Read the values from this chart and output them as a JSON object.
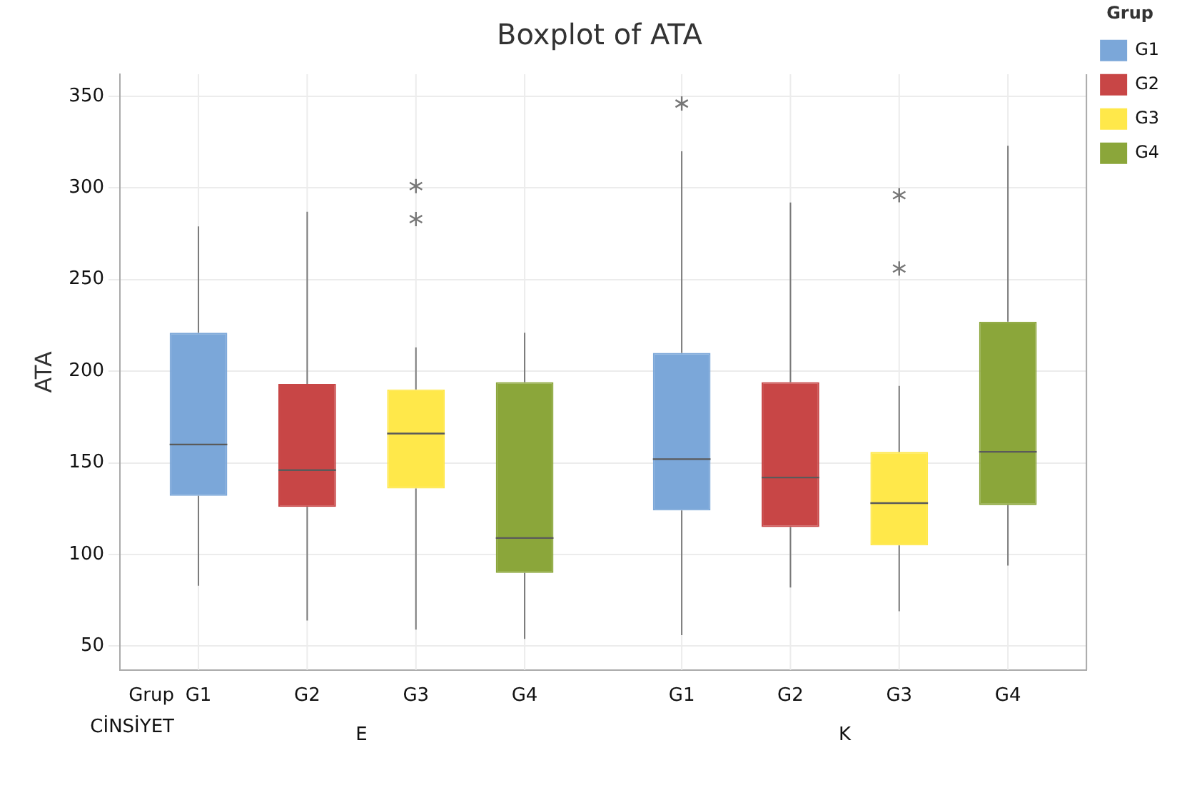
{
  "chart_data": {
    "type": "box",
    "title": "Boxplot of ATA",
    "ylabel": "ATA",
    "xlabel": "CİNSİYET",
    "legend_title": "Grup",
    "annotations": [
      "Grup"
    ],
    "categories": [
      "E",
      "K"
    ],
    "series": [
      {
        "name": "G1",
        "color": "#7ba7d9",
        "boxes": [
          {
            "low": 83,
            "q1": 132,
            "median": 160,
            "q3": 221,
            "high": 279
          },
          {
            "low": 56,
            "q1": 124,
            "median": 152,
            "q3": 210,
            "high": 320,
            "outliers": [
              346
            ]
          }
        ]
      },
      {
        "name": "G2",
        "color": "#c84646",
        "boxes": [
          {
            "low": 64,
            "q1": 126,
            "median": 146,
            "q3": 193,
            "high": 287
          },
          {
            "low": 82,
            "q1": 115,
            "median": 142,
            "q3": 194,
            "high": 292
          }
        ]
      },
      {
        "name": "G3",
        "color": "#ffe84a",
        "boxes": [
          {
            "low": 59,
            "q1": 136,
            "median": 166,
            "q3": 190,
            "high": 213,
            "outliers": [
              283,
              301
            ]
          },
          {
            "low": 69,
            "q1": 105,
            "median": 128,
            "q3": 156,
            "high": 192,
            "outliers": [
              256,
              296
            ]
          }
        ]
      },
      {
        "name": "G4",
        "color": "#8ba63a",
        "boxes": [
          {
            "low": 54,
            "q1": 90,
            "median": 109,
            "q3": 194,
            "high": 221
          },
          {
            "low": 94,
            "q1": 127,
            "median": 156,
            "q3": 227,
            "high": 323
          }
        ]
      }
    ],
    "ylim": [
      37,
      362
    ],
    "yticks": [
      50,
      100,
      150,
      200,
      250,
      300,
      350
    ],
    "grid": true,
    "legend": "top right"
  }
}
